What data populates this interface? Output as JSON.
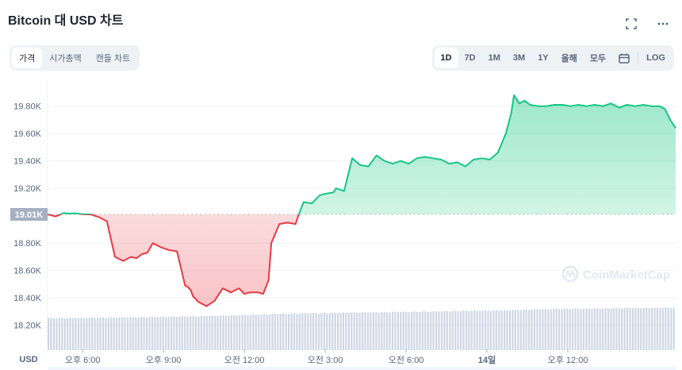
{
  "header": {
    "title": "Bitcoin 대 USD 차트",
    "fullscreen_icon": "fullscreen-icon",
    "more_icon": "more-icon"
  },
  "view_tabs": [
    {
      "label": "가격",
      "active": true
    },
    {
      "label": "시가총액",
      "active": false
    },
    {
      "label": "캔들 차트",
      "active": false
    }
  ],
  "range_tabs": [
    {
      "label": "1D",
      "active": true
    },
    {
      "label": "7D",
      "active": false
    },
    {
      "label": "1M",
      "active": false
    },
    {
      "label": "3M",
      "active": false
    },
    {
      "label": "1Y",
      "active": false
    },
    {
      "label": "올해",
      "active": false
    },
    {
      "label": "모두",
      "active": false
    }
  ],
  "calendar_icon": "calendar-icon",
  "log_label": "LOG",
  "watermark": "CoinMarketCap",
  "colors": {
    "up": "#16c784",
    "down": "#ea3943",
    "grid": "#eff2f5",
    "axis_text": "#58667e",
    "baseline_badge": "#a6b0c3",
    "volume": "#cfd6e4"
  },
  "chart_data": {
    "type": "line",
    "title": "Bitcoin 대 USD 차트",
    "xlabel": "",
    "ylabel": "USD",
    "baseline": 19010,
    "baseline_label": "19.01K",
    "ylim": [
      18050,
      19920
    ],
    "y_ticks": [
      "19.80K",
      "19.60K",
      "19.40K",
      "19.20K",
      "18.80K",
      "18.60K",
      "18.40K",
      "18.20K"
    ],
    "y_tick_values": [
      19800,
      19600,
      19400,
      19200,
      18800,
      18600,
      18400,
      18200
    ],
    "x_ticks": [
      "오후 6:00",
      "오후 9:00",
      "오전 12:00",
      "오전 3:00",
      "오전 6:00",
      "14일",
      "오후 12:00"
    ],
    "x_tick_hours": [
      18,
      21,
      24,
      27,
      30,
      33,
      36
    ],
    "x_start_hour": 16.7,
    "x_end_hour": 40,
    "grid": true,
    "legend": "none",
    "series": [
      {
        "name": "Price (USD)",
        "x_hours": [
          16.7,
          17.0,
          17.3,
          17.5,
          17.7,
          18.0,
          18.3,
          18.6,
          18.9,
          19.2,
          19.5,
          19.8,
          20.0,
          20.2,
          20.4,
          20.6,
          20.9,
          21.2,
          21.5,
          21.8,
          21.9,
          22.0,
          22.1,
          22.3,
          22.6,
          22.9,
          23.2,
          23.5,
          23.8,
          24.0,
          24.2,
          24.5,
          24.7,
          24.9,
          25.0,
          25.3,
          25.6,
          25.9,
          26.0,
          26.2,
          26.5,
          26.8,
          27.0,
          27.3,
          27.4,
          27.7,
          28.0,
          28.3,
          28.6,
          28.9,
          29.2,
          29.5,
          29.8,
          30.1,
          30.4,
          30.7,
          31.0,
          31.3,
          31.6,
          31.9,
          32.2,
          32.5,
          32.8,
          33.1,
          33.4,
          33.7,
          33.9,
          34.0,
          34.2,
          34.4,
          34.6,
          34.9,
          35.2,
          35.5,
          35.8,
          36.1,
          36.4,
          36.7,
          37.0,
          37.3,
          37.6,
          37.9,
          38.2,
          38.5,
          38.8,
          39.1,
          39.4,
          39.6,
          39.8,
          40.0
        ],
        "values": [
          19010,
          18995,
          19020,
          19015,
          19018,
          19012,
          19010,
          18990,
          18960,
          18700,
          18670,
          18700,
          18690,
          18720,
          18730,
          18800,
          18770,
          18750,
          18740,
          18490,
          18480,
          18460,
          18410,
          18370,
          18340,
          18380,
          18470,
          18440,
          18470,
          18430,
          18440,
          18440,
          18430,
          18530,
          18800,
          18940,
          18950,
          18940,
          19000,
          19100,
          19090,
          19150,
          19160,
          19170,
          19200,
          19180,
          19420,
          19370,
          19360,
          19440,
          19400,
          19380,
          19400,
          19380,
          19420,
          19430,
          19420,
          19410,
          19380,
          19390,
          19360,
          19410,
          19420,
          19410,
          19460,
          19600,
          19750,
          19880,
          19820,
          19840,
          19810,
          19800,
          19800,
          19810,
          19810,
          19800,
          19810,
          19800,
          19810,
          19800,
          19820,
          19790,
          19810,
          19800,
          19810,
          19800,
          19800,
          19780,
          19700,
          19640
        ]
      },
      {
        "name": "Volume",
        "type": "bar",
        "relative_heights": [
          0.62,
          0.62,
          0.63,
          0.64,
          0.65,
          0.66,
          0.67,
          0.69,
          0.71,
          0.73,
          0.75,
          0.76,
          0.77,
          0.78,
          0.79,
          0.8,
          0.81,
          0.82,
          0.83,
          0.85,
          0.87,
          0.88,
          0.88,
          0.9,
          0.9,
          0.91
        ]
      }
    ]
  },
  "axis": {
    "currency_label": "USD"
  }
}
